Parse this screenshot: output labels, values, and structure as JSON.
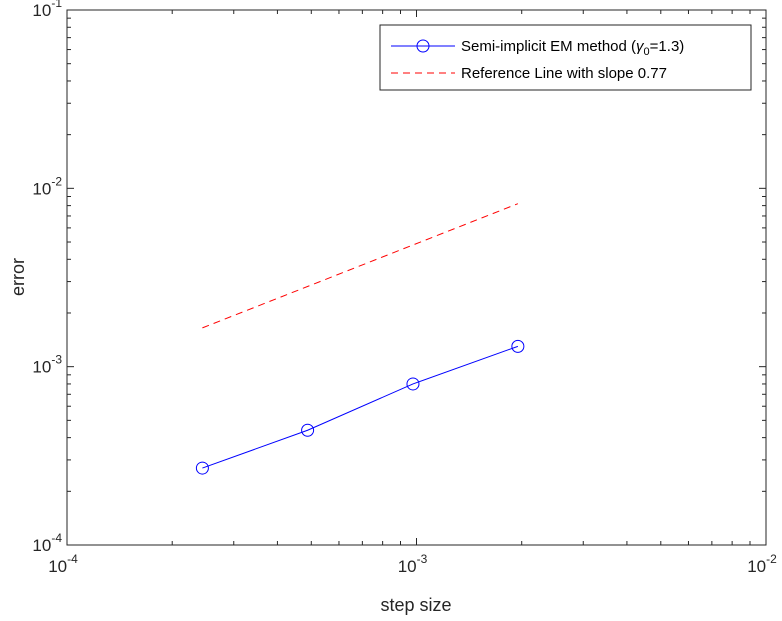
{
  "chart_data": {
    "type": "line",
    "xscale": "log",
    "yscale": "log",
    "xlim": [
      0.0001,
      0.01
    ],
    "ylim": [
      0.0001,
      0.1
    ],
    "xlabel": "step size",
    "ylabel": "error",
    "x_ticks": [
      {
        "value": 0.0001,
        "base": "10",
        "exp": "-4"
      },
      {
        "value": 0.001,
        "base": "10",
        "exp": "-3"
      },
      {
        "value": 0.01,
        "base": "10",
        "exp": "-2"
      }
    ],
    "y_ticks": [
      {
        "value": 0.0001,
        "base": "10",
        "exp": "-4"
      },
      {
        "value": 0.001,
        "base": "10",
        "exp": "-3"
      },
      {
        "value": 0.01,
        "base": "10",
        "exp": "-2"
      },
      {
        "value": 0.1,
        "base": "10",
        "exp": "-1"
      }
    ],
    "grid": false,
    "legend_position": "top-right",
    "series": [
      {
        "name_main": "Semi-implicit EM method (",
        "name_symbol": "γ",
        "name_sub": "0",
        "name_tail": "=1.3)",
        "color": "#0000ff",
        "line_style": "solid",
        "marker": "circle",
        "x": [
          0.000244,
          0.000488,
          0.000977,
          0.00195
        ],
        "y": [
          0.00027,
          0.00044,
          0.0008,
          0.0013
        ]
      },
      {
        "name": "Reference Line with slope 0.77",
        "color": "#ff0000",
        "line_style": "dashed",
        "marker": "none",
        "x": [
          0.000244,
          0.00195
        ],
        "y": [
          0.00165,
          0.0082
        ]
      }
    ]
  }
}
